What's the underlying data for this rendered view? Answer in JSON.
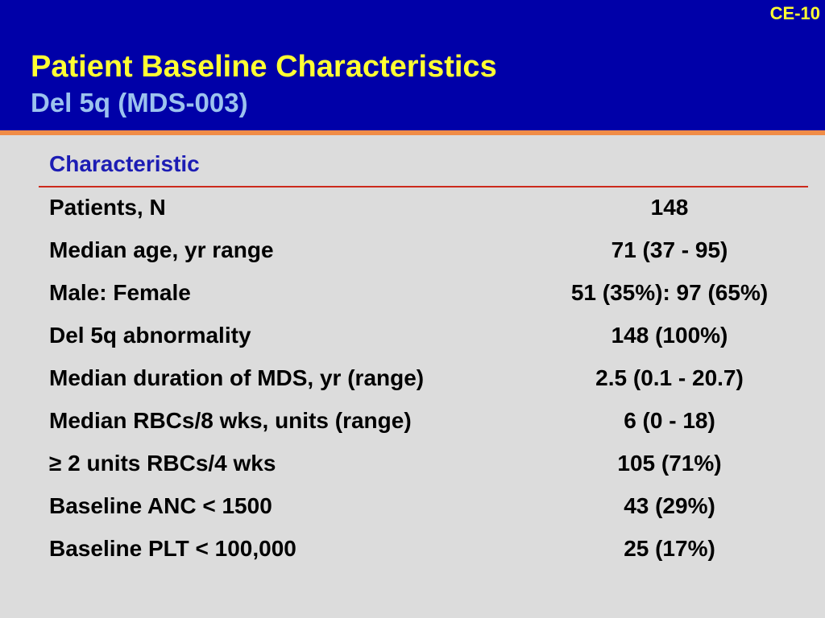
{
  "header": {
    "slide_code": "CE-10",
    "title": "Patient Baseline Characteristics",
    "subtitle": "Del 5q (MDS-003)"
  },
  "table": {
    "column_header": "Characteristic",
    "rows": [
      {
        "label": "Patients, N",
        "value": "148"
      },
      {
        "label": "Median age, yr range",
        "value": "71 (37 - 95)"
      },
      {
        "label": "Male: Female",
        "value": "51 (35%): 97 (65%)"
      },
      {
        "label": "Del 5q abnormality",
        "value": "148 (100%)"
      },
      {
        "label": "Median duration of MDS, yr (range)",
        "value": "2.5 (0.1 - 20.7)"
      },
      {
        "label": "Median RBCs/8 wks, units (range)",
        "value": "6 (0 - 18)"
      },
      {
        "label": "≥ 2 units RBCs/4 wks",
        "value": "105 (71%)"
      },
      {
        "label": "Baseline ANC < 1500",
        "value": "43 (29%)"
      },
      {
        "label": "Baseline PLT < 100,000",
        "value": "25 (17%)"
      }
    ]
  },
  "colors": {
    "header_bg": "#0000a8",
    "title": "#ffff33",
    "subtitle": "#9cc2ee",
    "accent_bar": "#f08c46",
    "rule": "#cc2a1c",
    "column_header": "#1c1cb4",
    "background": "#dcdcdc"
  }
}
